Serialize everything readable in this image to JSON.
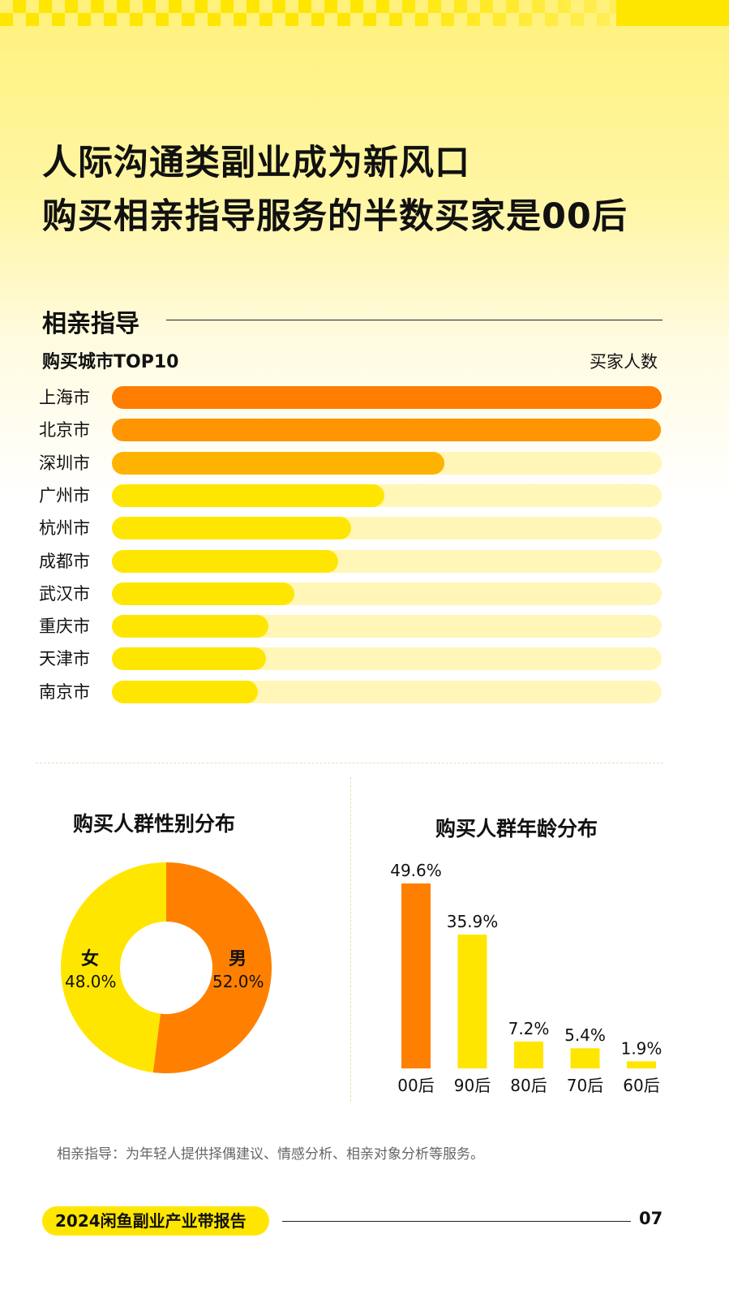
{
  "title": {
    "line1": "人际沟通类副业成为新风口",
    "line2": "购买相亲指导服务的半数买家是00后"
  },
  "section": {
    "title": "相亲指导",
    "subtitle": "购买城市TOP10",
    "unit": "买家人数"
  },
  "chart_data": [
    {
      "type": "bar",
      "orientation": "horizontal",
      "title": "购买城市TOP10",
      "ylabel": "买家人数",
      "categories": [
        "上海市",
        "北京市",
        "深圳市",
        "广州市",
        "杭州市",
        "成都市",
        "武汉市",
        "重庆市",
        "天津市",
        "南京市"
      ],
      "values": [
        100,
        99.8,
        60.5,
        49.5,
        43.5,
        41.2,
        33.2,
        28.4,
        28.0,
        26.6
      ],
      "colors": [
        "#ff7d00",
        "#ff9500",
        "#ffb200",
        "#ffe600",
        "#ffe600",
        "#ffe600",
        "#ffe600",
        "#ffe600",
        "#ffe600",
        "#ffe600"
      ],
      "track_color": "#fff6b8"
    },
    {
      "type": "pie",
      "title": "购买人群性别分布",
      "slices": [
        {
          "name": "男",
          "value": 52.0,
          "label": "52.0%",
          "color": "#ff8000"
        },
        {
          "name": "女",
          "value": 48.0,
          "label": "48.0%",
          "color": "#ffe600"
        }
      ]
    },
    {
      "type": "bar",
      "title": "购买人群年龄分布",
      "categories": [
        "00后",
        "90后",
        "80后",
        "70后",
        "60后"
      ],
      "values": [
        49.6,
        35.9,
        7.2,
        5.4,
        1.9
      ],
      "labels": [
        "49.6%",
        "35.9%",
        "7.2%",
        "5.4%",
        "1.9%"
      ],
      "colors": [
        "#ff8000",
        "#ffe600",
        "#ffe600",
        "#ffe600",
        "#ffe600"
      ]
    }
  ],
  "footnote": "相亲指导：为年轻人提供择偶建议、情感分析、相亲对象分析等服务。",
  "footer": {
    "report": "2024闲鱼副业产业带报告",
    "page": "07"
  }
}
